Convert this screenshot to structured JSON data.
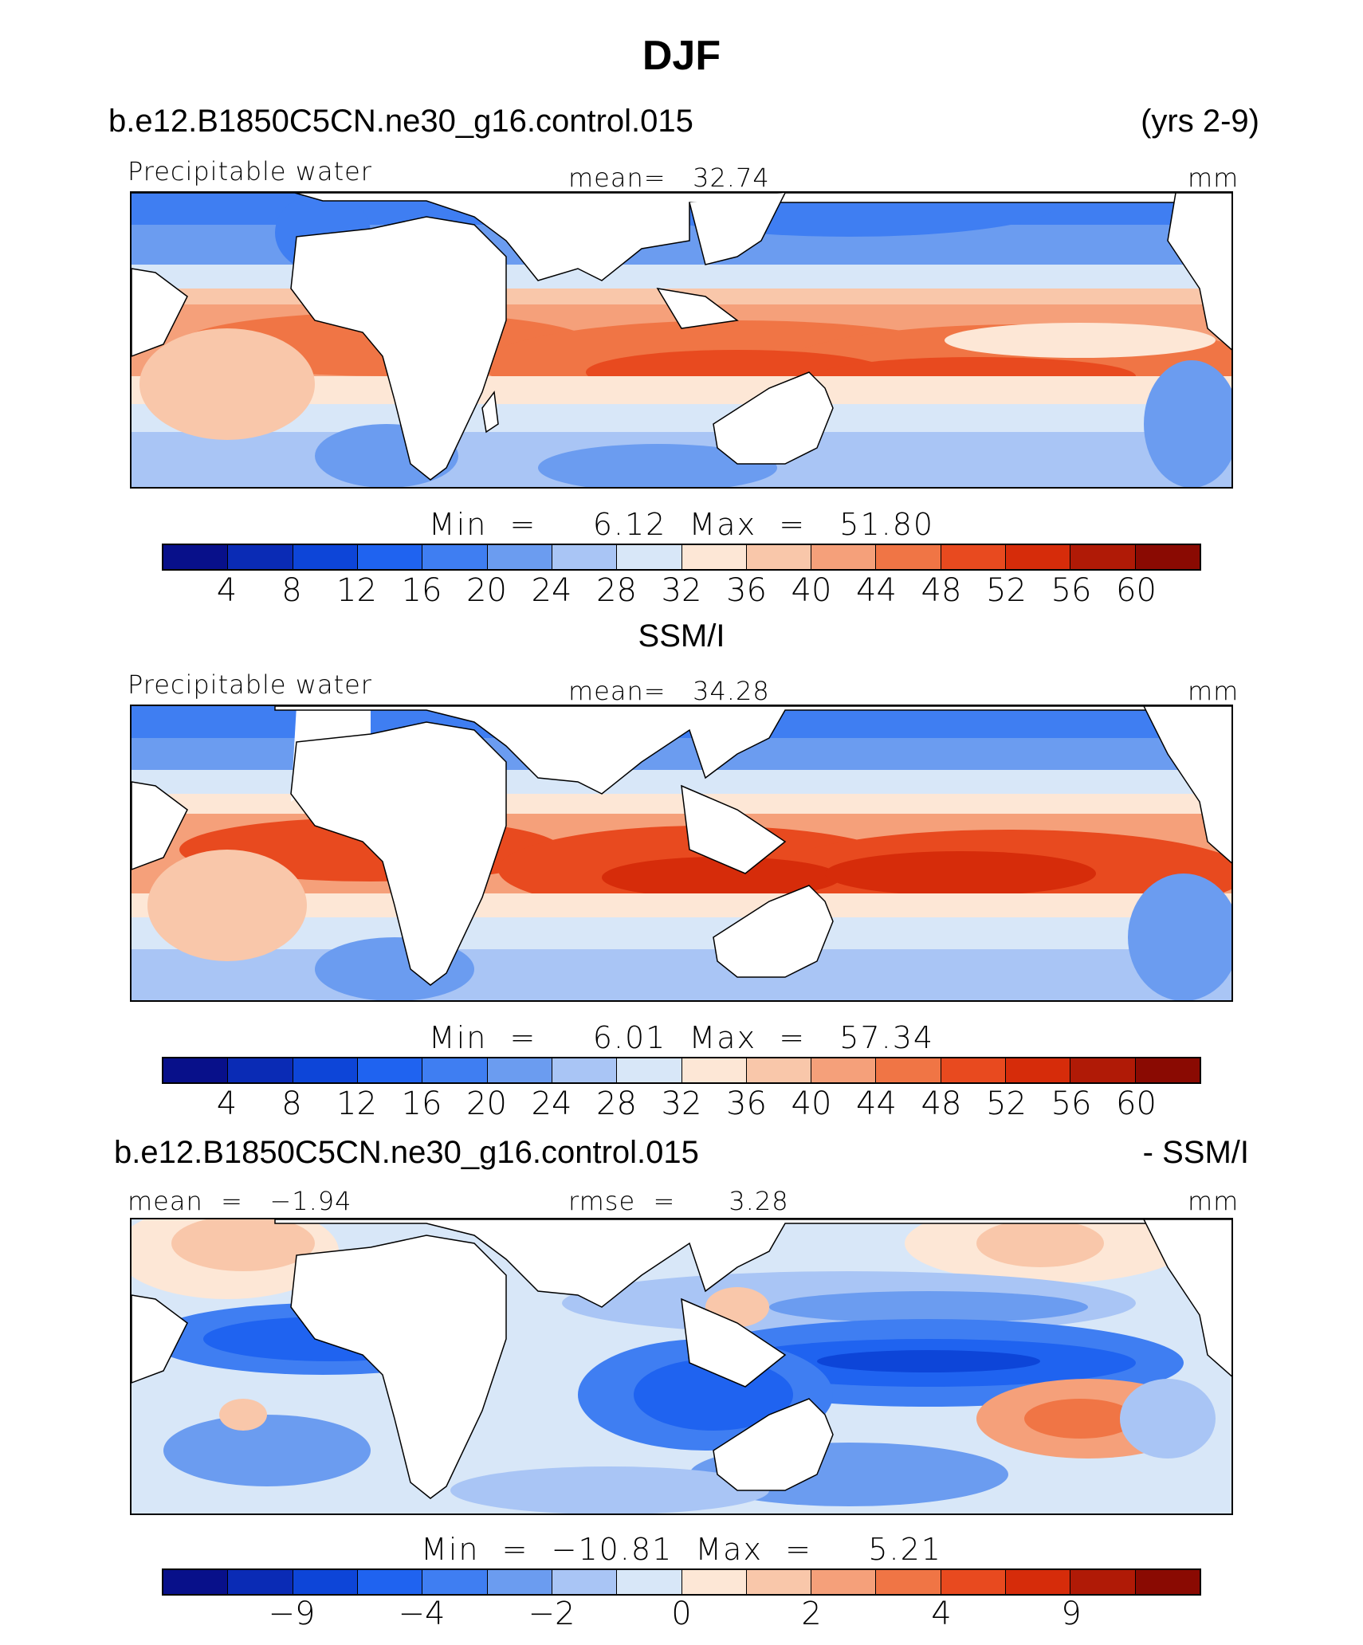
{
  "figure_title": "DJF",
  "palette": [
    "#08108a",
    "#0a2bb5",
    "#0d45d8",
    "#1f63f0",
    "#3f7ef2",
    "#6b9cf0",
    "#a9c5f5",
    "#d8e7f8",
    "#fde7d6",
    "#f9c7aa",
    "#f5a07a",
    "#f07545",
    "#e84a1f",
    "#d62c0a",
    "#b01a06",
    "#8a0a02"
  ],
  "panels": [
    {
      "id": "model",
      "header_left": "b.e12.B1850C5CN.ne30_g16.control.015",
      "header_right": "(yrs 2-9)",
      "label_left": "Precipitable water",
      "label_center": "mean=   32.74",
      "label_right": "mm",
      "stats": "Min  =     6.12  Max  =   51.80",
      "colorbar_ticks": [
        "4",
        "8",
        "12",
        "16",
        "20",
        "24",
        "28",
        "32",
        "36",
        "40",
        "44",
        "48",
        "52",
        "56",
        "60"
      ]
    },
    {
      "id": "obs",
      "header_center": "SSM/I",
      "label_left": "Precipitable water",
      "label_center": "mean=   34.28",
      "label_right": "mm",
      "stats": "Min  =     6.01  Max  =   57.34",
      "colorbar_ticks": [
        "4",
        "8",
        "12",
        "16",
        "20",
        "24",
        "28",
        "32",
        "36",
        "40",
        "44",
        "48",
        "52",
        "56",
        "60"
      ]
    },
    {
      "id": "diff",
      "header_left": "b.e12.B1850C5CN.ne30_g16.control.015",
      "header_right": "- SSM/I",
      "label_left": "mean  =   −1.94",
      "label_center": "rmse  =      3.28",
      "label_right": "mm",
      "stats": "Min  =  −10.81  Max  =     5.21",
      "colorbar_ticks": [
        "−9",
        "−4",
        "−2",
        "0",
        "2",
        "4",
        "9"
      ]
    }
  ]
}
